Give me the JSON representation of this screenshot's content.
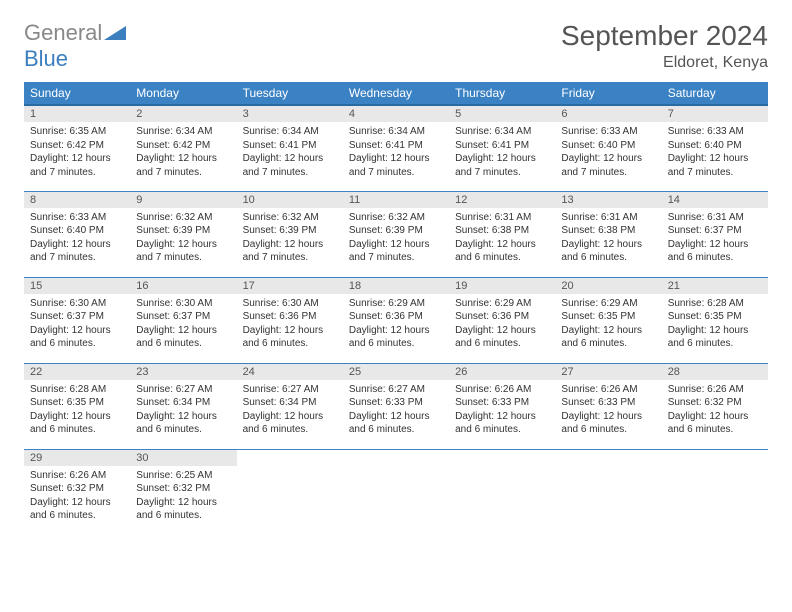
{
  "logo": {
    "word1": "General",
    "word2": "Blue"
  },
  "title": "September 2024",
  "location": "Eldoret, Kenya",
  "colors": {
    "header_bg": "#3b82c4",
    "header_text": "#ffffff",
    "daynum_bg": "#e8e8e8",
    "border": "#3b82c4",
    "logo_gray": "#888888",
    "logo_blue": "#3b7fbf",
    "text": "#333333"
  },
  "weekdays": [
    "Sunday",
    "Monday",
    "Tuesday",
    "Wednesday",
    "Thursday",
    "Friday",
    "Saturday"
  ],
  "days": [
    {
      "n": 1,
      "sunrise": "6:35 AM",
      "sunset": "6:42 PM",
      "daylight": "12 hours and 7 minutes."
    },
    {
      "n": 2,
      "sunrise": "6:34 AM",
      "sunset": "6:42 PM",
      "daylight": "12 hours and 7 minutes."
    },
    {
      "n": 3,
      "sunrise": "6:34 AM",
      "sunset": "6:41 PM",
      "daylight": "12 hours and 7 minutes."
    },
    {
      "n": 4,
      "sunrise": "6:34 AM",
      "sunset": "6:41 PM",
      "daylight": "12 hours and 7 minutes."
    },
    {
      "n": 5,
      "sunrise": "6:34 AM",
      "sunset": "6:41 PM",
      "daylight": "12 hours and 7 minutes."
    },
    {
      "n": 6,
      "sunrise": "6:33 AM",
      "sunset": "6:40 PM",
      "daylight": "12 hours and 7 minutes."
    },
    {
      "n": 7,
      "sunrise": "6:33 AM",
      "sunset": "6:40 PM",
      "daylight": "12 hours and 7 minutes."
    },
    {
      "n": 8,
      "sunrise": "6:33 AM",
      "sunset": "6:40 PM",
      "daylight": "12 hours and 7 minutes."
    },
    {
      "n": 9,
      "sunrise": "6:32 AM",
      "sunset": "6:39 PM",
      "daylight": "12 hours and 7 minutes."
    },
    {
      "n": 10,
      "sunrise": "6:32 AM",
      "sunset": "6:39 PM",
      "daylight": "12 hours and 7 minutes."
    },
    {
      "n": 11,
      "sunrise": "6:32 AM",
      "sunset": "6:39 PM",
      "daylight": "12 hours and 7 minutes."
    },
    {
      "n": 12,
      "sunrise": "6:31 AM",
      "sunset": "6:38 PM",
      "daylight": "12 hours and 6 minutes."
    },
    {
      "n": 13,
      "sunrise": "6:31 AM",
      "sunset": "6:38 PM",
      "daylight": "12 hours and 6 minutes."
    },
    {
      "n": 14,
      "sunrise": "6:31 AM",
      "sunset": "6:37 PM",
      "daylight": "12 hours and 6 minutes."
    },
    {
      "n": 15,
      "sunrise": "6:30 AM",
      "sunset": "6:37 PM",
      "daylight": "12 hours and 6 minutes."
    },
    {
      "n": 16,
      "sunrise": "6:30 AM",
      "sunset": "6:37 PM",
      "daylight": "12 hours and 6 minutes."
    },
    {
      "n": 17,
      "sunrise": "6:30 AM",
      "sunset": "6:36 PM",
      "daylight": "12 hours and 6 minutes."
    },
    {
      "n": 18,
      "sunrise": "6:29 AM",
      "sunset": "6:36 PM",
      "daylight": "12 hours and 6 minutes."
    },
    {
      "n": 19,
      "sunrise": "6:29 AM",
      "sunset": "6:36 PM",
      "daylight": "12 hours and 6 minutes."
    },
    {
      "n": 20,
      "sunrise": "6:29 AM",
      "sunset": "6:35 PM",
      "daylight": "12 hours and 6 minutes."
    },
    {
      "n": 21,
      "sunrise": "6:28 AM",
      "sunset": "6:35 PM",
      "daylight": "12 hours and 6 minutes."
    },
    {
      "n": 22,
      "sunrise": "6:28 AM",
      "sunset": "6:35 PM",
      "daylight": "12 hours and 6 minutes."
    },
    {
      "n": 23,
      "sunrise": "6:27 AM",
      "sunset": "6:34 PM",
      "daylight": "12 hours and 6 minutes."
    },
    {
      "n": 24,
      "sunrise": "6:27 AM",
      "sunset": "6:34 PM",
      "daylight": "12 hours and 6 minutes."
    },
    {
      "n": 25,
      "sunrise": "6:27 AM",
      "sunset": "6:33 PM",
      "daylight": "12 hours and 6 minutes."
    },
    {
      "n": 26,
      "sunrise": "6:26 AM",
      "sunset": "6:33 PM",
      "daylight": "12 hours and 6 minutes."
    },
    {
      "n": 27,
      "sunrise": "6:26 AM",
      "sunset": "6:33 PM",
      "daylight": "12 hours and 6 minutes."
    },
    {
      "n": 28,
      "sunrise": "6:26 AM",
      "sunset": "6:32 PM",
      "daylight": "12 hours and 6 minutes."
    },
    {
      "n": 29,
      "sunrise": "6:26 AM",
      "sunset": "6:32 PM",
      "daylight": "12 hours and 6 minutes."
    },
    {
      "n": 30,
      "sunrise": "6:25 AM",
      "sunset": "6:32 PM",
      "daylight": "12 hours and 6 minutes."
    }
  ],
  "labels": {
    "sunrise": "Sunrise:",
    "sunset": "Sunset:",
    "daylight": "Daylight:"
  },
  "layout": {
    "first_day_column": 0,
    "total_cells": 35
  }
}
